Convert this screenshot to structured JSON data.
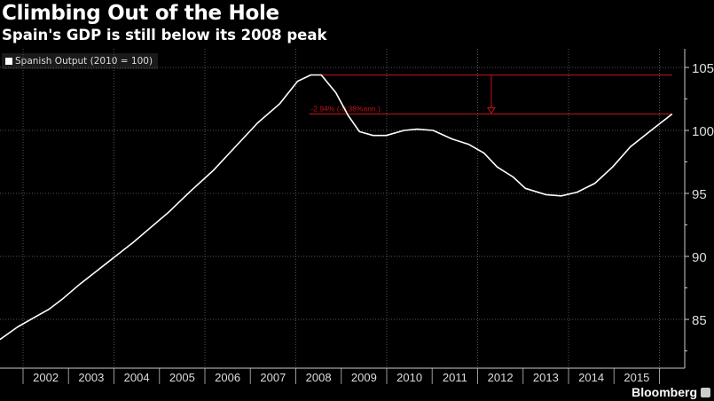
{
  "chart_data": {
    "type": "line",
    "title": "Climbing Out of the Hole",
    "subtitle": "Spain's GDP is still below its 2008 peak",
    "xlabel": "",
    "ylabel": "",
    "legend": {
      "label": "Spanish Output (2010 = 100)",
      "placement": "top-left"
    },
    "x_tick_labels": [
      "2002",
      "2003",
      "2004",
      "2005",
      "2006",
      "2007",
      "2008",
      "2009",
      "2010",
      "2011",
      "2012",
      "2013",
      "2014",
      "2015"
    ],
    "y_ticks": [
      85,
      90,
      95,
      100,
      105
    ],
    "y_tick_labels": [
      "85",
      "90",
      "95",
      "100",
      "105"
    ],
    "xlim": [
      2001.49,
      2016.3
    ],
    "ylim": [
      81.1,
      106.5
    ],
    "grid": true,
    "series": [
      {
        "name": "Spanish Output (2010 = 100)",
        "color": "#ffffff",
        "x": [
          2001.49,
          2001.88,
          2002.27,
          2002.57,
          2002.86,
          2003.25,
          2003.64,
          2004.03,
          2004.42,
          2004.81,
          2005.2,
          2005.69,
          2006.18,
          2006.67,
          2007.16,
          2007.64,
          2008.04,
          2008.33,
          2008.56,
          2008.88,
          2009.15,
          2009.4,
          2009.7,
          2009.99,
          2010.38,
          2010.67,
          2011.02,
          2011.45,
          2011.8,
          2012.14,
          2012.43,
          2012.78,
          2013.05,
          2013.5,
          2013.84,
          2014.19,
          2014.58,
          2014.97,
          2015.36,
          2015.85,
          2016.28
        ],
        "values": [
          83.4,
          84.4,
          85.2,
          85.8,
          86.6,
          87.8,
          88.9,
          90.0,
          91.1,
          92.3,
          93.5,
          95.2,
          96.8,
          98.7,
          100.6,
          102.1,
          103.9,
          104.4,
          104.4,
          103.0,
          101.2,
          99.9,
          99.6,
          99.6,
          100.0,
          100.1,
          100.0,
          99.3,
          98.9,
          98.2,
          97.1,
          96.3,
          95.4,
          94.9,
          94.8,
          95.1,
          95.8,
          97.1,
          98.7,
          100.1,
          101.3
        ]
      }
    ],
    "annotation": {
      "text": "-2.94% (-0.38%ann.)",
      "from_value": 104.4,
      "to_value": 101.3,
      "x_start": 2008.33,
      "x_end": 2016.28,
      "arrow_x": 2012.3,
      "color": "#c0141c"
    }
  },
  "brand": "Bloomberg"
}
